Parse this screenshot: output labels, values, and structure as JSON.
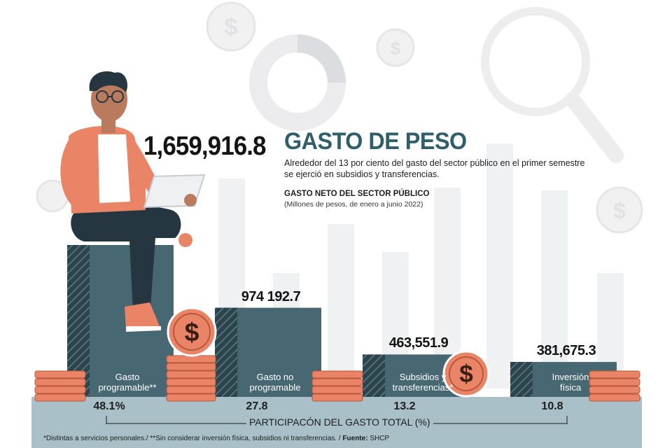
{
  "headline": {
    "total_value": "1,659,916.8",
    "title": "GASTO DE PESO",
    "subtitle": "Alrededor del 13 por ciento del gasto del sector público en el primer semestre se ejerció en subsidios y transferencias.",
    "measure": "GASTO NETO DEL SECTOR PÚBLICO",
    "units": "(Millones de pesos, de enero a junio 2022)"
  },
  "chart_data": {
    "type": "bar",
    "title": "GASTO NETO DEL SECTOR PÚBLICO",
    "subtitle": "(Millones de pesos, de enero a junio 2022)",
    "categories": [
      "Gasto programable**",
      "Gasto no programable",
      "Subsidios y transferencias*",
      "Inversión física"
    ],
    "values": [
      1659916.8,
      974192.7,
      463551.9,
      381675.3
    ],
    "value_labels": [
      "1,659,916.8",
      "974 192.7",
      "463,551.9",
      "381,675.3"
    ],
    "category_lines": [
      [
        "Gasto",
        "programable**"
      ],
      [
        "Gasto no",
        "programable"
      ],
      [
        "Subsidios y",
        "transferencias*"
      ],
      [
        "Inversión",
        "física"
      ]
    ],
    "share_percent": [
      48.1,
      27.8,
      13.2,
      10.8
    ],
    "share_labels": [
      "48.1%",
      "27.8",
      "13.2",
      "10.8"
    ],
    "share_axis_label": "PARTICIPACÓN DEL GASTO TOTAL (%)",
    "ylim": [
      0,
      1700000
    ],
    "grid": false,
    "colors": {
      "bar": "#476873",
      "bar_dark": "#2c444c",
      "base": "#a9c0c8",
      "coin": "#e98566",
      "accent_title": "#2f5f6a"
    }
  },
  "footnote": {
    "text": "*Distintas a servicios personales./ **Sin considerar inversión física, subsidios ni transferencias. / ",
    "source_label": "Fuente:",
    "source": "SHCP"
  },
  "icons": [
    "dollar-coin-icon",
    "magnifier-icon",
    "donut-chart-icon",
    "person-with-tablet-illustration",
    "coin-stack-icon"
  ]
}
